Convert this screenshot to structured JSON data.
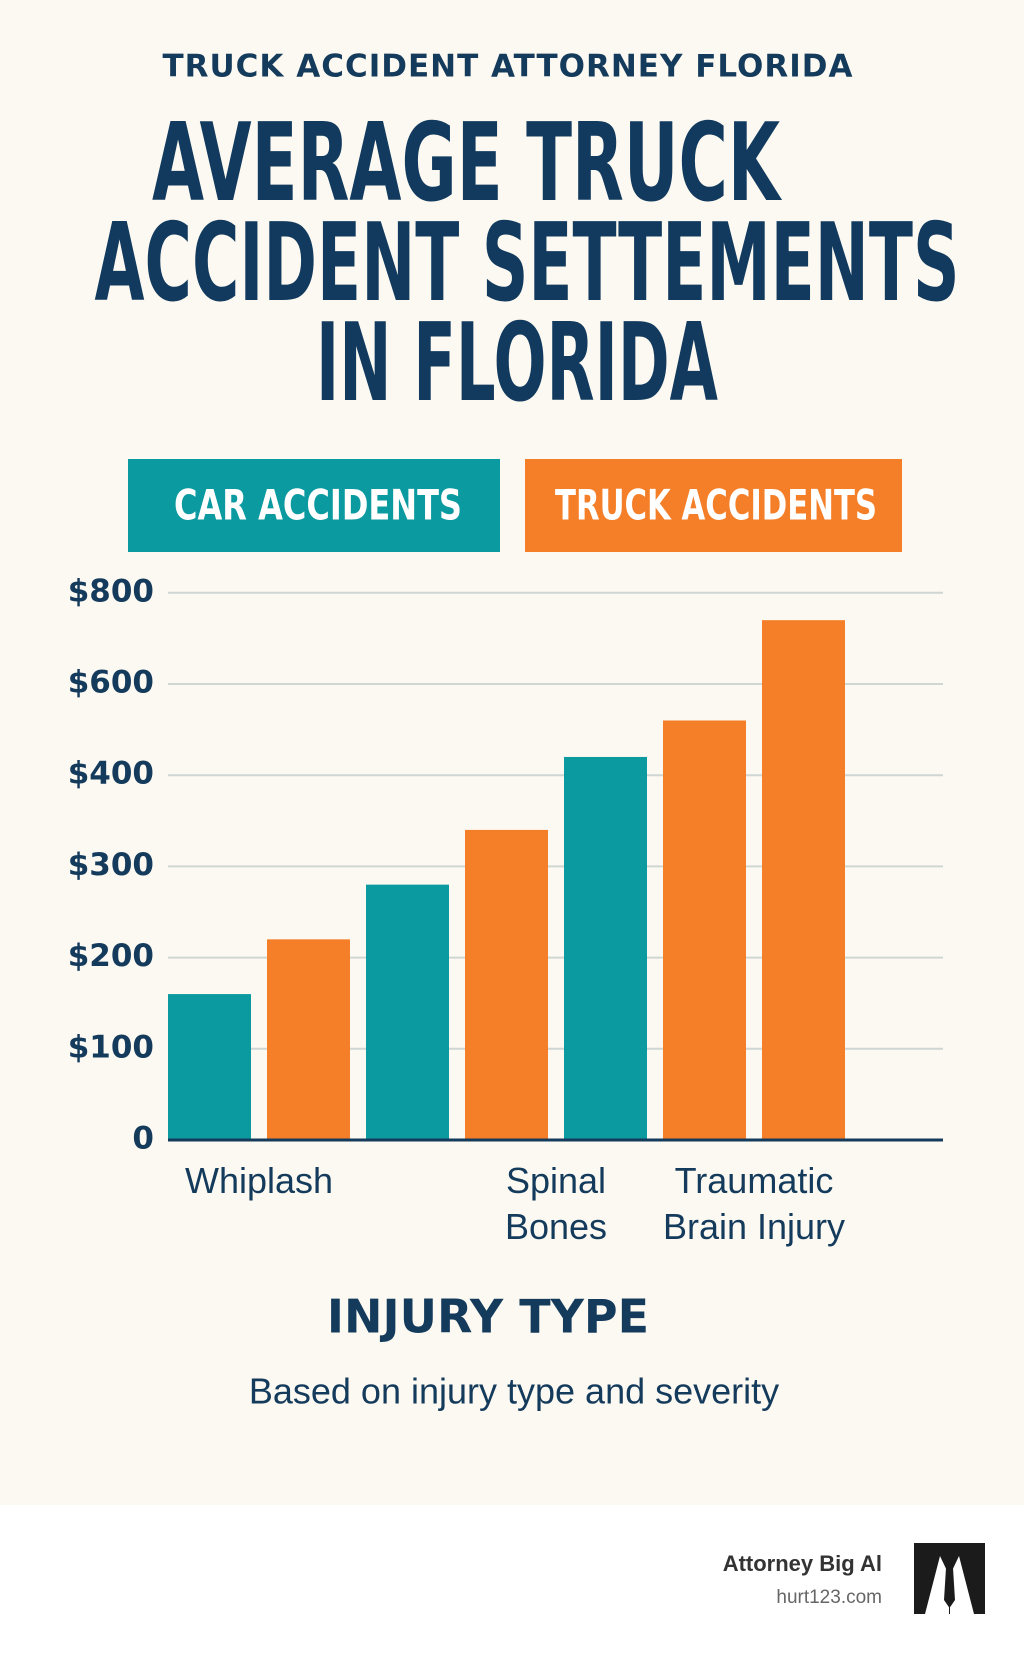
{
  "header": {
    "kicker": "TRUCK ACCIDENT ATTORNEY FLORIDA"
  },
  "chart_data": {
    "type": "bar",
    "title": [
      "AVERAGE TRUCK",
      "ACCIDENT SETTEMENTS",
      "IN FLORIDA"
    ],
    "categories": [
      "Whiplash",
      null,
      null,
      "Spinal Bones",
      null,
      "Traumatic Brain Injury",
      null
    ],
    "series": [
      {
        "name": "CAR ACCIDENTS",
        "color": "#0a9aa0",
        "values": [
          160,
          null,
          280,
          null,
          440,
          null,
          null
        ]
      },
      {
        "name": "TRUCK ACCIDENTS",
        "color": "#f47f28",
        "values": [
          null,
          220,
          null,
          340,
          null,
          520,
          740
        ]
      }
    ],
    "ylim": [
      0,
      800
    ],
    "yticks": [
      0,
      {
        "value": 100,
        "label": "$100"
      },
      {
        "value": 200,
        "label": "$200"
      },
      {
        "value": 300,
        "label": "$300"
      },
      {
        "value": 400,
        "label": "$400"
      },
      {
        "value": 600,
        "label": "$600"
      },
      {
        "value": 800,
        "label": "$800"
      }
    ],
    "grid": true,
    "x_label": "INJURY TYPE",
    "subtitle": "Based on injury type and severity"
  },
  "footer": {
    "brand": "Attorney Big Al",
    "site": "hurt123.com"
  }
}
